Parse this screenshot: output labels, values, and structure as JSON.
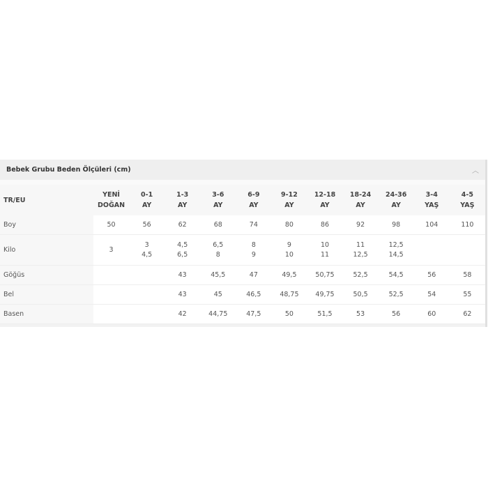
{
  "title": "Bebek Grubu Beden Ölçüleri (cm)",
  "collapse_icon": "chevron-up-icon",
  "table": {
    "corner": "TR/EU",
    "columns": [
      [
        "YENİ",
        "DOĞAN"
      ],
      [
        "0-1",
        "AY"
      ],
      [
        "1-3",
        "AY"
      ],
      [
        "3-6",
        "AY"
      ],
      [
        "6-9",
        "AY"
      ],
      [
        "9-12",
        "AY"
      ],
      [
        "12-18",
        "AY"
      ],
      [
        "18-24",
        "AY"
      ],
      [
        "24-36",
        "AY"
      ],
      [
        "3-4",
        "YAŞ"
      ],
      [
        "4-5",
        "YAŞ"
      ]
    ],
    "rows": [
      {
        "label": "Boy",
        "cells": [
          [
            "50"
          ],
          [
            "56"
          ],
          [
            "62"
          ],
          [
            "68"
          ],
          [
            "74"
          ],
          [
            "80"
          ],
          [
            "86"
          ],
          [
            "92"
          ],
          [
            "98"
          ],
          [
            "104"
          ],
          [
            "110"
          ]
        ]
      },
      {
        "label": "Kilo",
        "cells": [
          [
            "3"
          ],
          [
            "3",
            "4,5"
          ],
          [
            "4,5",
            "6,5"
          ],
          [
            "6,5",
            "8"
          ],
          [
            "8",
            "9"
          ],
          [
            "9",
            "10"
          ],
          [
            "10",
            "11"
          ],
          [
            "11",
            "12,5"
          ],
          [
            "12,5",
            "14,5"
          ],
          [
            ""
          ],
          [
            ""
          ]
        ]
      },
      {
        "label": "Göğüs",
        "cells": [
          [
            ""
          ],
          [
            ""
          ],
          [
            "43"
          ],
          [
            "45,5"
          ],
          [
            "47"
          ],
          [
            "49,5"
          ],
          [
            "50,75"
          ],
          [
            "52,5"
          ],
          [
            "54,5"
          ],
          [
            "56"
          ],
          [
            "58"
          ]
        ]
      },
      {
        "label": "Bel",
        "cells": [
          [
            ""
          ],
          [
            ""
          ],
          [
            "43"
          ],
          [
            "45"
          ],
          [
            "46,5"
          ],
          [
            "48,75"
          ],
          [
            "49,75"
          ],
          [
            "50,5"
          ],
          [
            "52,5"
          ],
          [
            "54"
          ],
          [
            "55"
          ]
        ]
      },
      {
        "label": "Basen",
        "cells": [
          [
            ""
          ],
          [
            ""
          ],
          [
            "42"
          ],
          [
            "44,75"
          ],
          [
            "47,5"
          ],
          [
            "50"
          ],
          [
            "51,5"
          ],
          [
            "53"
          ],
          [
            "56"
          ],
          [
            "60"
          ],
          [
            "62"
          ]
        ]
      }
    ]
  }
}
